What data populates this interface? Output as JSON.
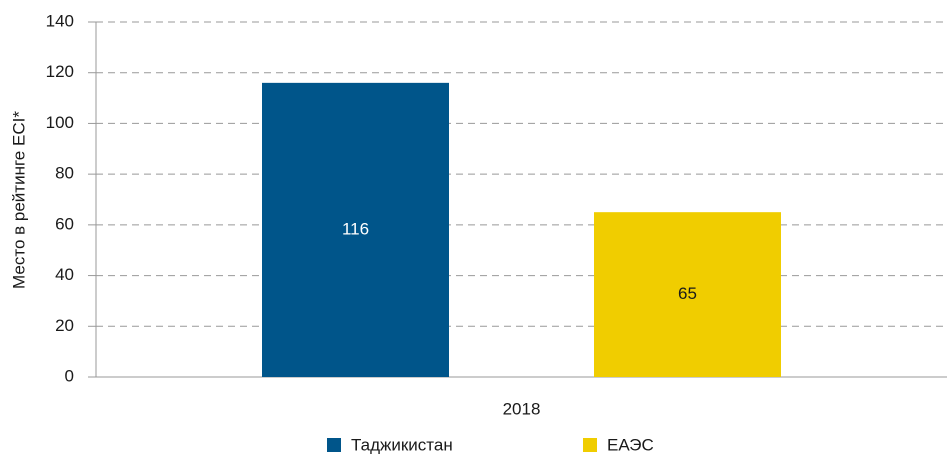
{
  "chart_data": {
    "type": "bar",
    "categories": [
      "2018"
    ],
    "series": [
      {
        "name": "Таджикистан",
        "color": "#00558a",
        "values": [
          116
        ]
      },
      {
        "name": "ЕАЭС",
        "color": "#f0cd00",
        "values": [
          65
        ]
      }
    ],
    "y_label": "Место в рейтинге ECI*",
    "ylim": [
      0,
      140
    ],
    "yticks": [
      0,
      20,
      40,
      60,
      80,
      100,
      120,
      140
    ],
    "grid": true
  }
}
